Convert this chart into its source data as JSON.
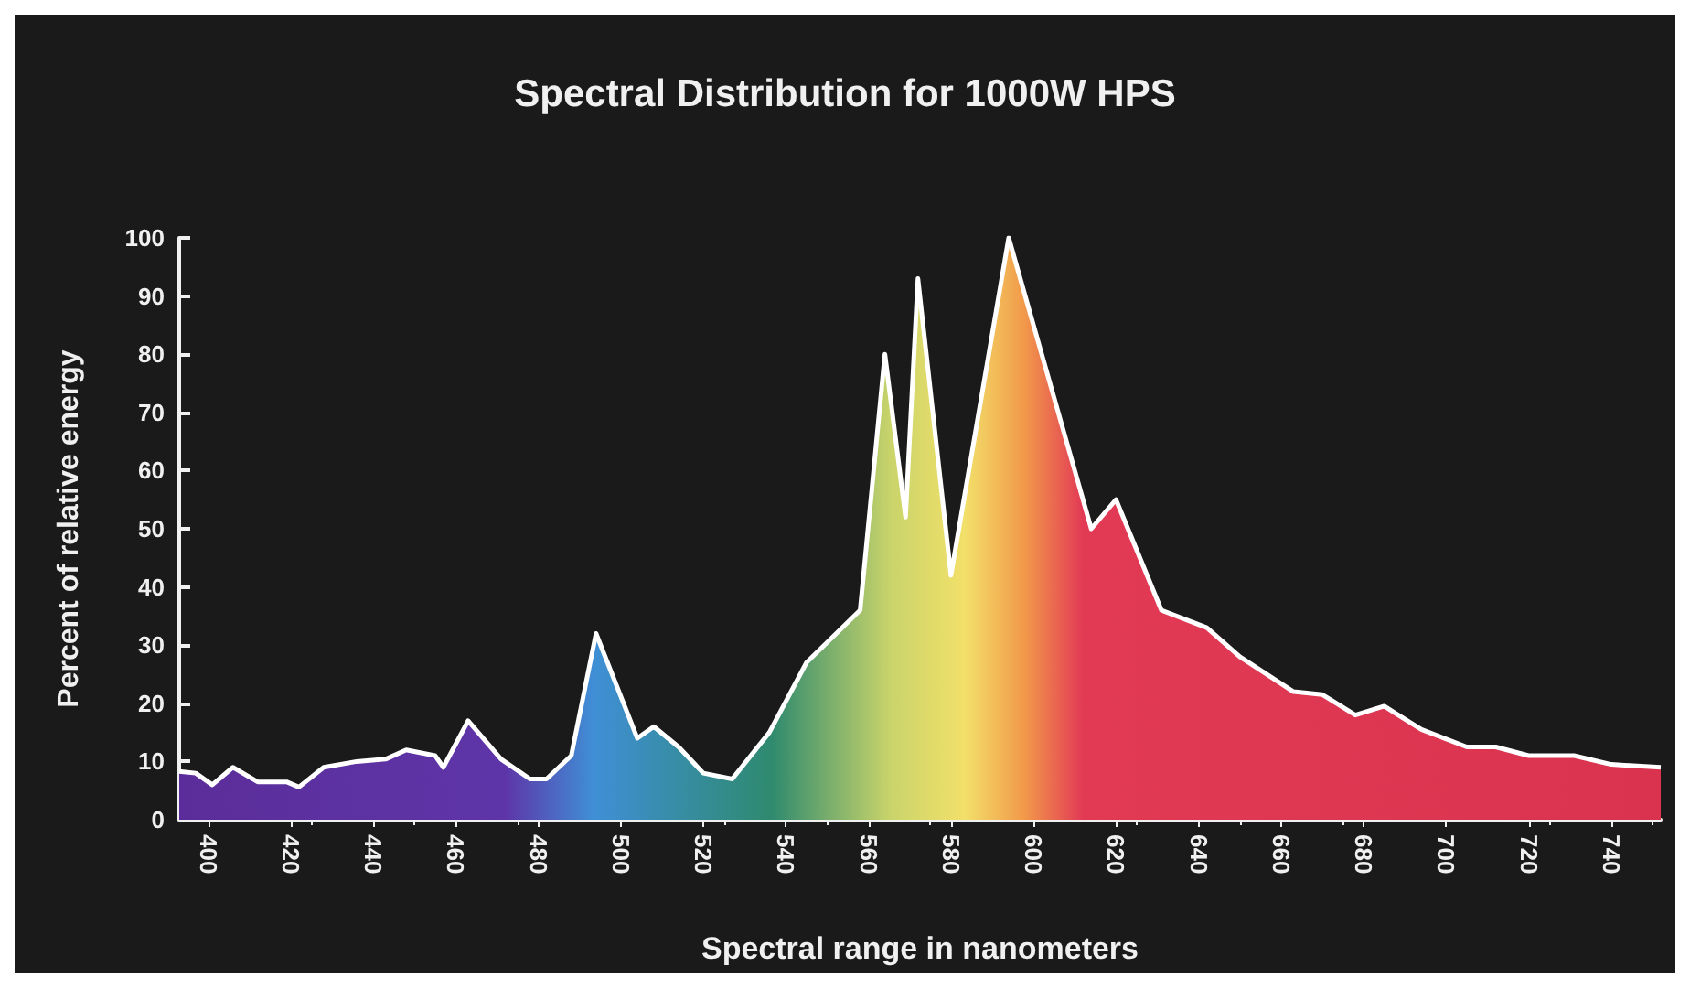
{
  "chart_data": {
    "type": "area",
    "title": "Spectral Distribution for 1000W HPS",
    "xlabel": "Spectral range in nanometers",
    "ylabel": "Percent of relative energy",
    "x": [
      393,
      397,
      401,
      406,
      412,
      419,
      422,
      428,
      436,
      443,
      448,
      455,
      457,
      463,
      471,
      478,
      482,
      488,
      494,
      504,
      508,
      514,
      520,
      527,
      536,
      545,
      558,
      564,
      569,
      572,
      580,
      594,
      614,
      620,
      631,
      642,
      650,
      663,
      670,
      678,
      685,
      694,
      705,
      712,
      720,
      731,
      740,
      752
    ],
    "series": [
      {
        "color": "#ffffff",
        "values": [
          8.3,
          8,
          6,
          9,
          6.5,
          6.5,
          5.6,
          9,
          10,
          10.4,
          12,
          11,
          9,
          17,
          10.4,
          7,
          7,
          11,
          32,
          14,
          16,
          12.5,
          8,
          7,
          15,
          27,
          36,
          80,
          52,
          93,
          42,
          100,
          50,
          55,
          36,
          33,
          28,
          22,
          21.5,
          18,
          19.5,
          15.5,
          12.5,
          12.5,
          11,
          11,
          9.5,
          9
        ]
      }
    ],
    "xlim": [
      393,
      752
    ],
    "xticks": [
      400,
      420,
      440,
      460,
      480,
      500,
      520,
      540,
      560,
      580,
      600,
      620,
      640,
      660,
      680,
      700,
      720,
      740
    ],
    "ylim": [
      0,
      100
    ],
    "yticks": [
      0,
      10,
      20,
      30,
      40,
      50,
      60,
      70,
      80,
      90,
      100
    ],
    "grid": false,
    "marker": "none",
    "line_style": "solid"
  }
}
